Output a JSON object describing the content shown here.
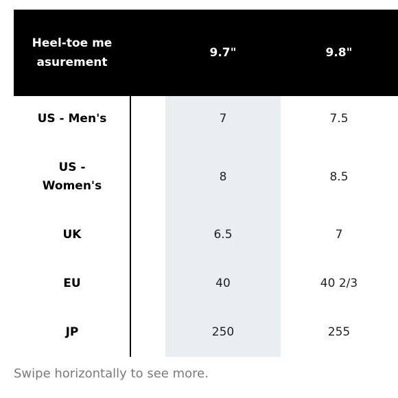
{
  "table": {
    "header": {
      "label": "Heel-toe measurement",
      "columns": [
        "9.7\"",
        "9.8\""
      ]
    },
    "rows": [
      {
        "label": "US - Men's",
        "values": [
          "7",
          "7.5"
        ]
      },
      {
        "label": "US - Women's",
        "values": [
          "8",
          "8.5"
        ]
      },
      {
        "label": "UK",
        "values": [
          "6.5",
          "7"
        ]
      },
      {
        "label": "EU",
        "values": [
          "40",
          "40 2/3"
        ]
      },
      {
        "label": "JP",
        "values": [
          "250",
          "255"
        ]
      }
    ],
    "highlight_color": "#ebeef1",
    "header_background": "#000000"
  },
  "footer": {
    "hint": "Swipe horizontally to see more."
  }
}
